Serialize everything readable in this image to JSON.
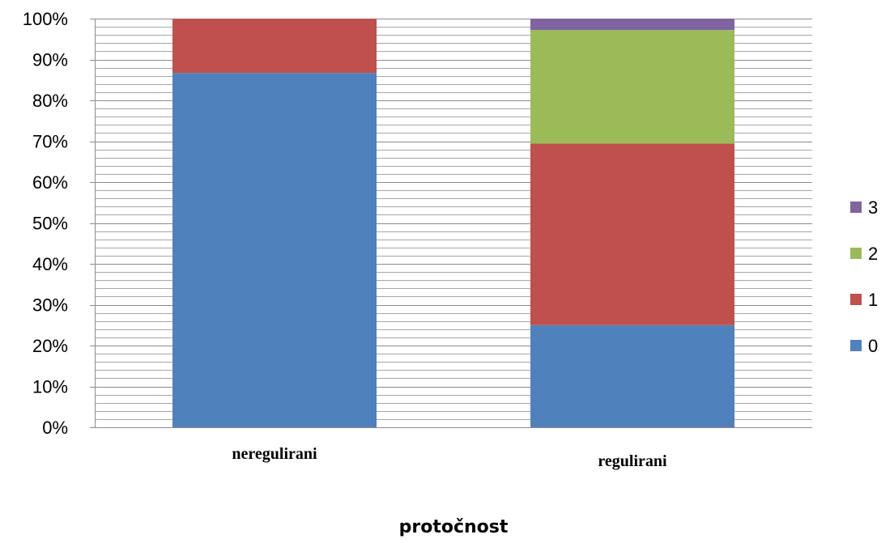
{
  "chart_data": {
    "type": "bar",
    "stacked": true,
    "percent_stacked": true,
    "categories": [
      "neregulirani",
      "regulirani"
    ],
    "series": [
      {
        "name": "0",
        "color": "#4F81BD",
        "values": [
          86.7,
          25.0
        ]
      },
      {
        "name": "1",
        "color": "#C0504D",
        "values": [
          13.3,
          44.4
        ]
      },
      {
        "name": "2",
        "color": "#9BBB59",
        "values": [
          0.0,
          27.8
        ]
      },
      {
        "name": "3",
        "color": "#8064A2",
        "values": [
          0.0,
          2.8
        ]
      }
    ],
    "xlabel": "protočnost",
    "ylabel": "",
    "ylim": [
      0,
      100
    ],
    "y_ticks": [
      "0%",
      "10%",
      "20%",
      "30%",
      "40%",
      "50%",
      "60%",
      "70%",
      "80%",
      "90%",
      "100%"
    ],
    "grid": true,
    "minor_grid": true,
    "legend": {
      "position": "right",
      "order": [
        "3",
        "2",
        "1",
        "0"
      ]
    }
  }
}
